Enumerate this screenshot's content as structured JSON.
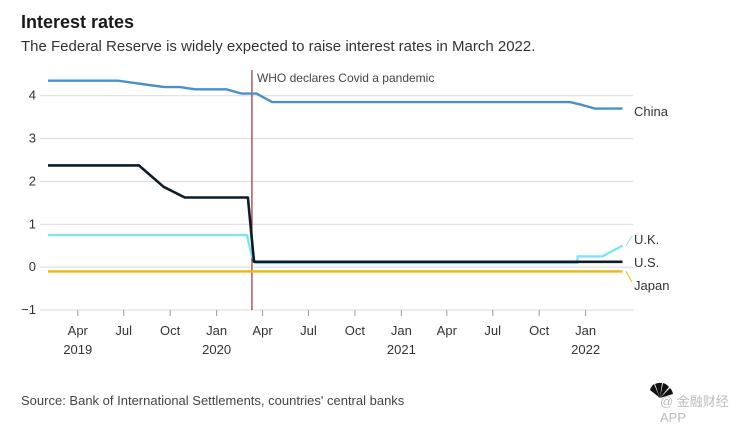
{
  "chart_data": {
    "type": "line",
    "title": "Interest rates",
    "subtitle": "The Federal Reserve is widely expected to raise interest rates in March 2022.",
    "ylim": [
      -1,
      4.6
    ],
    "yticks": [
      -1,
      0,
      1,
      2,
      3,
      4
    ],
    "ytick_labels": [
      "−1",
      "0",
      "1",
      "2",
      "3",
      "4"
    ],
    "xlim": [
      "2019-02-01",
      "2022-03-20"
    ],
    "xticks": [
      {
        "date": "2019-04-01",
        "label": "Apr",
        "year": "2019"
      },
      {
        "date": "2019-07-01",
        "label": "Jul",
        "year": ""
      },
      {
        "date": "2019-10-01",
        "label": "Oct",
        "year": ""
      },
      {
        "date": "2020-01-01",
        "label": "Jan",
        "year": "2020"
      },
      {
        "date": "2020-04-01",
        "label": "Apr",
        "year": ""
      },
      {
        "date": "2020-07-01",
        "label": "Jul",
        "year": ""
      },
      {
        "date": "2020-10-01",
        "label": "Oct",
        "year": ""
      },
      {
        "date": "2021-01-01",
        "label": "Jan",
        "year": "2021"
      },
      {
        "date": "2021-04-01",
        "label": "Apr",
        "year": ""
      },
      {
        "date": "2021-07-01",
        "label": "Jul",
        "year": ""
      },
      {
        "date": "2021-10-01",
        "label": "Oct",
        "year": ""
      },
      {
        "date": "2022-01-01",
        "label": "Jan",
        "year": "2022"
      }
    ],
    "grid": true,
    "annotations": [
      {
        "date": "2020-03-11",
        "text": "WHO declares Covid a pandemic",
        "color": "#9b2d2d"
      }
    ],
    "series": [
      {
        "name": "China",
        "color": "#4a90c8",
        "points": [
          [
            "2019-02-01",
            4.35
          ],
          [
            "2019-06-20",
            4.35
          ],
          [
            "2019-08-20",
            4.25
          ],
          [
            "2019-09-20",
            4.2
          ],
          [
            "2019-10-20",
            4.2
          ],
          [
            "2019-11-20",
            4.15
          ],
          [
            "2019-12-20",
            4.15
          ],
          [
            "2020-01-20",
            4.15
          ],
          [
            "2020-02-20",
            4.05
          ],
          [
            "2020-03-20",
            4.05
          ],
          [
            "2020-04-20",
            3.85
          ],
          [
            "2021-12-01",
            3.85
          ],
          [
            "2021-12-20",
            3.8
          ],
          [
            "2022-01-20",
            3.7
          ],
          [
            "2022-03-15",
            3.7
          ]
        ]
      },
      {
        "name": "U.K.",
        "color": "#7fe3f0",
        "points": [
          [
            "2019-02-01",
            0.75
          ],
          [
            "2020-03-01",
            0.75
          ],
          [
            "2020-03-11",
            0.25
          ],
          [
            "2020-03-19",
            0.1
          ],
          [
            "2021-12-16",
            0.1
          ],
          [
            "2021-12-16",
            0.25
          ],
          [
            "2022-02-03",
            0.25
          ],
          [
            "2022-03-15",
            0.5
          ]
        ]
      },
      {
        "name": "U.S.",
        "color": "#0d1b2a",
        "points": [
          [
            "2019-02-01",
            2.375
          ],
          [
            "2019-07-31",
            2.375
          ],
          [
            "2019-09-18",
            1.875
          ],
          [
            "2019-10-30",
            1.625
          ],
          [
            "2020-03-03",
            1.625
          ],
          [
            "2020-03-15",
            0.125
          ],
          [
            "2022-03-15",
            0.125
          ]
        ]
      },
      {
        "name": "Japan",
        "color": "#f2b705",
        "points": [
          [
            "2019-02-01",
            -0.1
          ],
          [
            "2022-03-15",
            -0.1
          ]
        ]
      }
    ]
  },
  "source": "Source: Bank of International Settlements, countries' central banks",
  "watermark": "@ 金融财经APP"
}
